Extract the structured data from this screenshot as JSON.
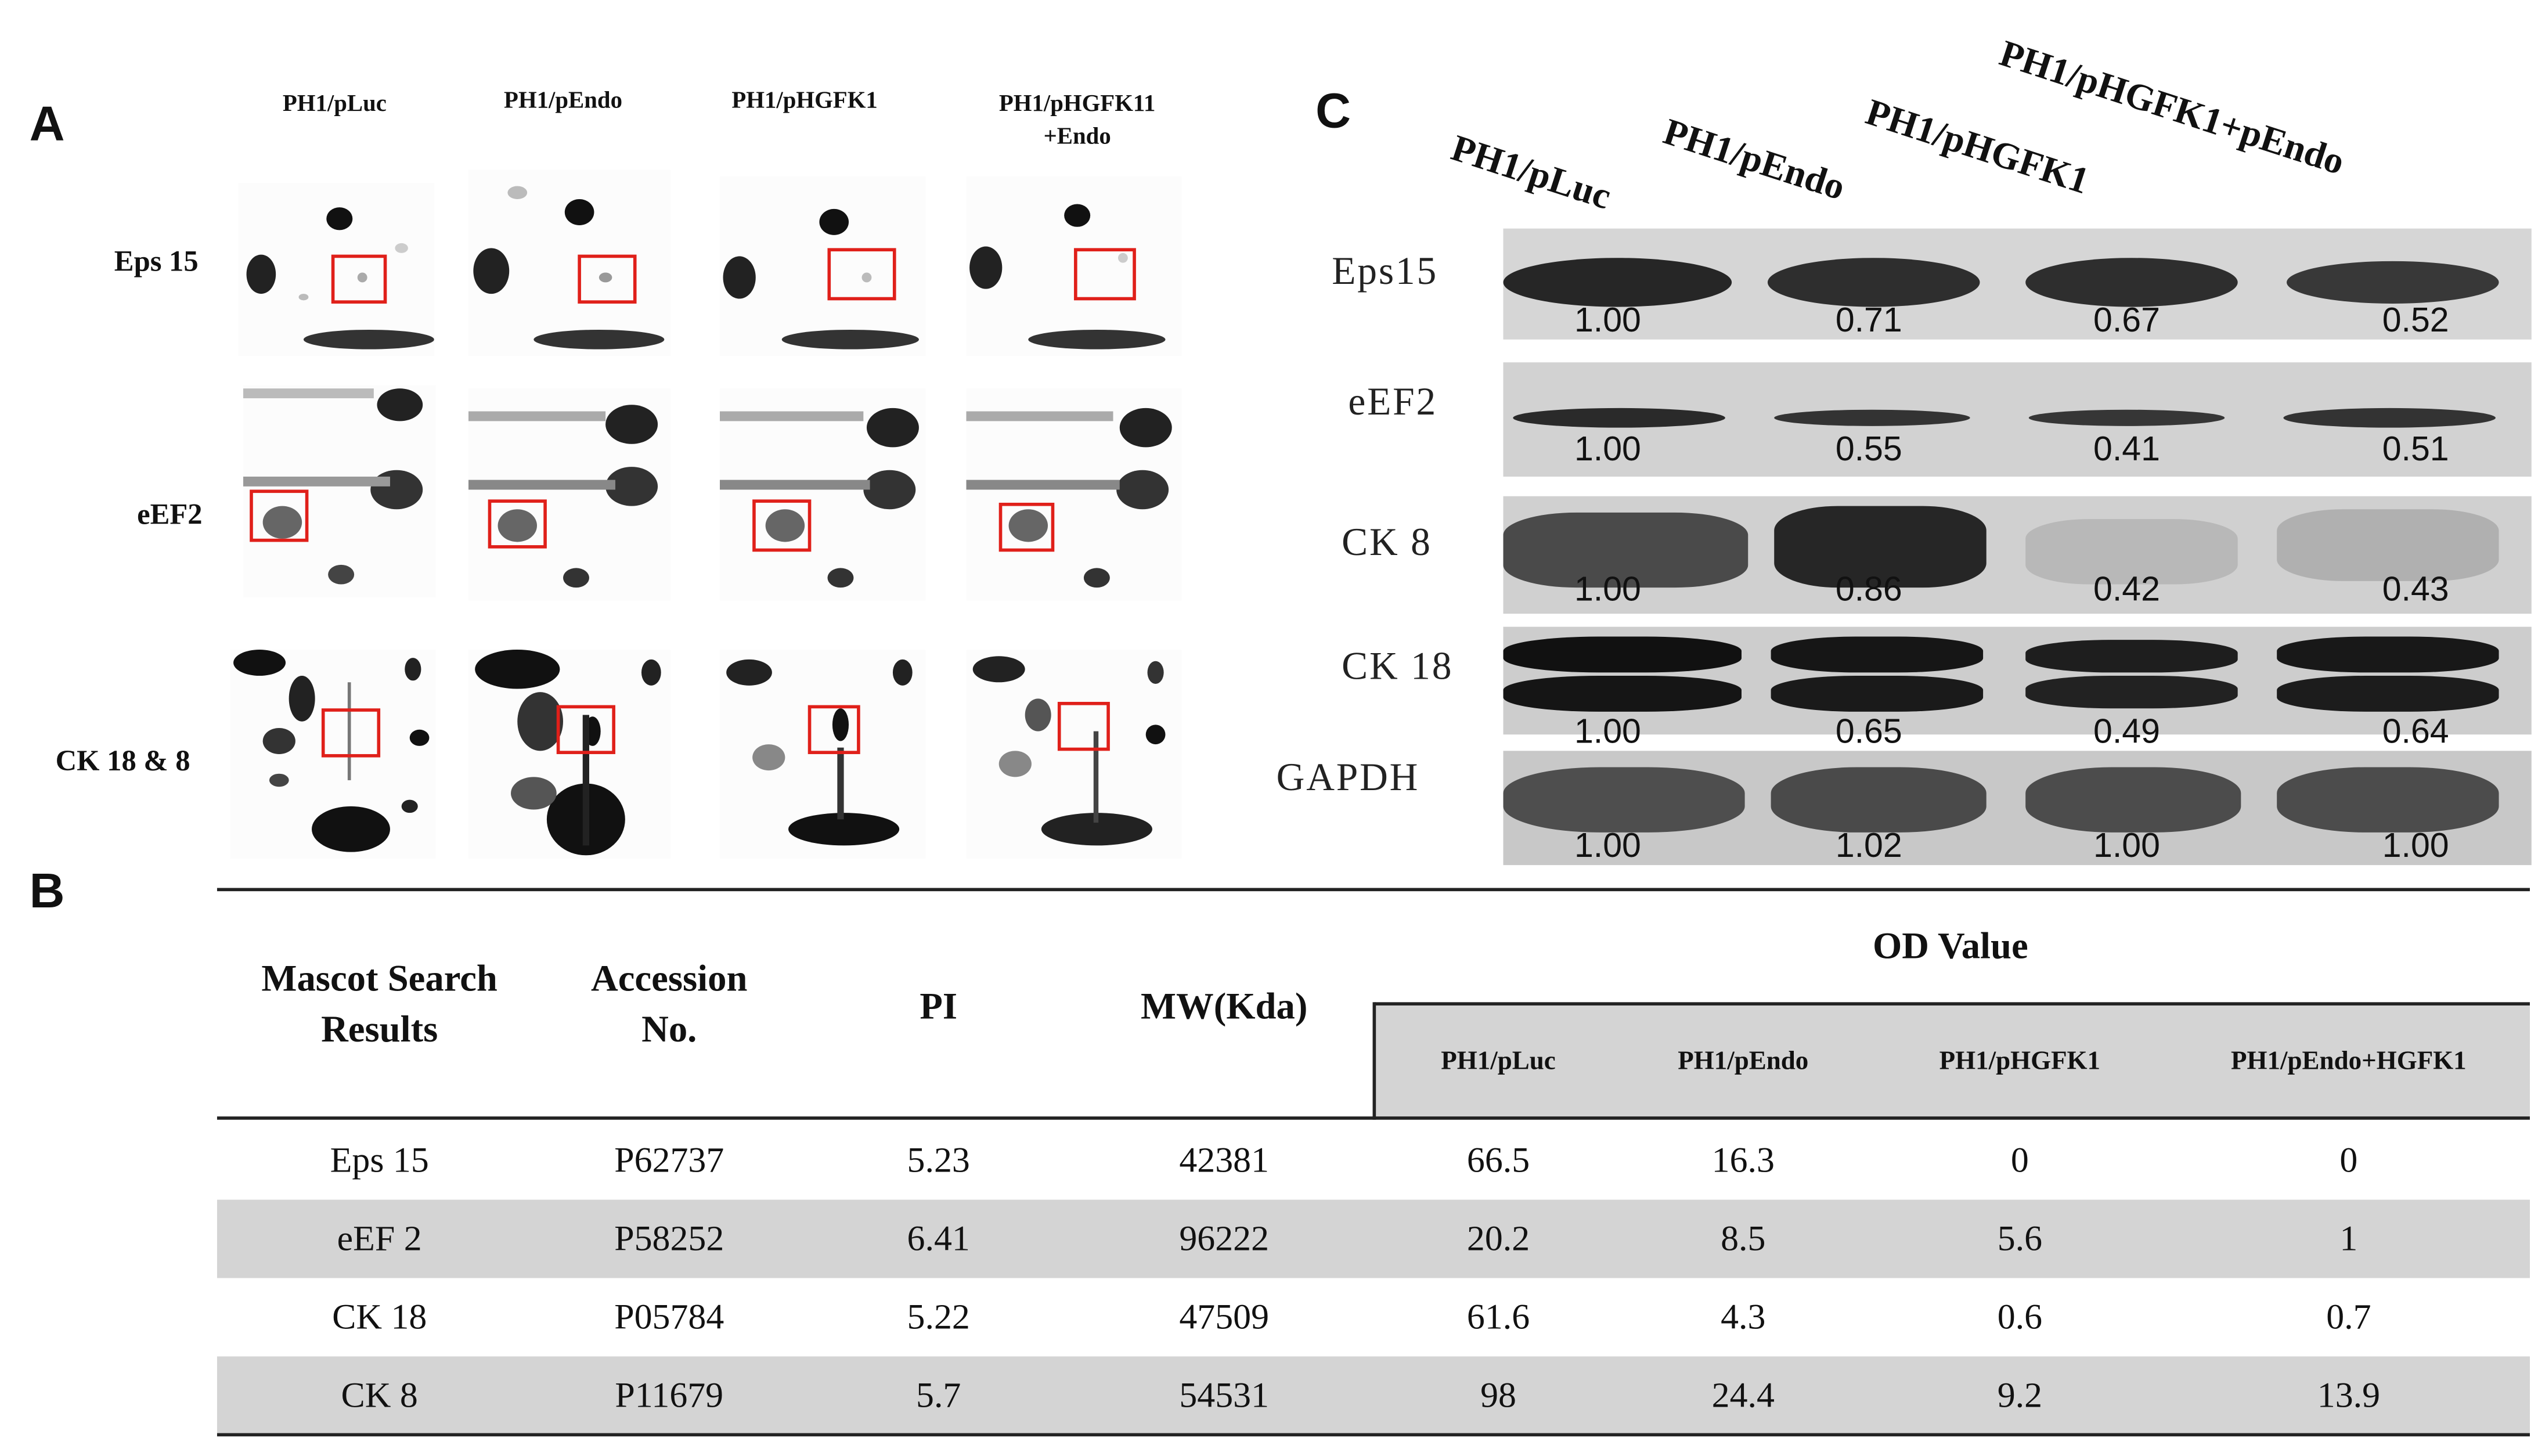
{
  "panel_a": {
    "letter": "A",
    "columns": [
      "PH1/pLuc",
      "PH1/pEndo",
      "PH1/pHGFK1",
      "PH1/pHGFK11\n+Endo"
    ],
    "rows": [
      "Eps 15",
      "eEF2",
      "CK 18 & 8"
    ]
  },
  "panel_b": {
    "letter": "B",
    "headers": {
      "mascot": "Mascot Search Results",
      "accession": "Accession No.",
      "pi": "PI",
      "mw": "MW(Kda)",
      "od": "OD Value"
    },
    "od_columns": [
      "PH1/pLuc",
      "PH1/pEndo",
      "PH1/pHGFK1",
      "PH1/pEndo+HGFK1"
    ],
    "rows": [
      {
        "name": "Eps 15",
        "accession": "P62737",
        "pi": "5.23",
        "mw": "42381",
        "od": [
          "66.5",
          "16.3",
          "0",
          "0"
        ]
      },
      {
        "name": "eEF 2",
        "accession": "P58252",
        "pi": "6.41",
        "mw": "96222",
        "od": [
          "20.2",
          "8.5",
          "5.6",
          "1"
        ]
      },
      {
        "name": "CK 18",
        "accession": "P05784",
        "pi": "5.22",
        "mw": "47509",
        "od": [
          "61.6",
          "4.3",
          "0.6",
          "0.7"
        ]
      },
      {
        "name": "CK 8",
        "accession": "P11679",
        "pi": "5.7",
        "mw": "54531",
        "od": [
          "98",
          "24.4",
          "9.2",
          "13.9"
        ]
      }
    ]
  },
  "panel_c": {
    "letter": "C",
    "lanes": [
      "PH1/pLuc",
      "PH1/pEndo",
      "PH1/pHGFK1",
      "PH1/pHGFK1+pEndo"
    ],
    "blots": [
      {
        "label": "Eps15",
        "values": [
          "1.00",
          "0.71",
          "0.67",
          "0.52"
        ]
      },
      {
        "label": "eEF2",
        "values": [
          "1.00",
          "0.55",
          "0.41",
          "0.51"
        ]
      },
      {
        "label": "CK 8",
        "values": [
          "1.00",
          "0.86",
          "0.42",
          "0.43"
        ]
      },
      {
        "label": "CK 18",
        "values": [
          "1.00",
          "0.65",
          "0.49",
          "0.64"
        ]
      },
      {
        "label": "GAPDH",
        "values": [
          "1.00",
          "1.02",
          "1.00",
          "1.00"
        ]
      }
    ]
  }
}
